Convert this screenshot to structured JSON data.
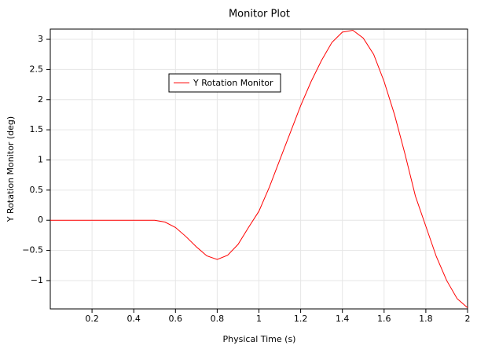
{
  "chart_data": {
    "type": "line",
    "title": "Monitor Plot",
    "x_label": "Physical Time (s)",
    "y_label": "Y Rotation Monitor (deg)",
    "x": [
      0,
      0.05,
      0.1,
      0.15,
      0.2,
      0.25,
      0.3,
      0.35,
      0.4,
      0.45,
      0.5,
      0.55,
      0.6,
      0.65,
      0.7,
      0.75,
      0.8,
      0.85,
      0.9,
      0.95,
      1,
      1.05,
      1.1,
      1.15,
      1.2,
      1.25,
      1.3,
      1.35,
      1.4,
      1.45,
      1.5,
      1.55,
      1.6,
      1.65,
      1.7,
      1.75,
      1.8,
      1.85,
      1.9,
      1.95,
      2
    ],
    "series": [
      {
        "name": "Y Rotation Monitor",
        "color": "#ff0000",
        "values": [
          0,
          0,
          0,
          0,
          0,
          0,
          0,
          0,
          0,
          0,
          0,
          -0.03,
          -0.12,
          -0.27,
          -0.44,
          -0.59,
          -0.65,
          -0.58,
          -0.4,
          -0.12,
          0.15,
          0.55,
          1.0,
          1.45,
          1.9,
          2.3,
          2.65,
          2.95,
          3.12,
          3.15,
          3.02,
          2.75,
          2.3,
          1.75,
          1.1,
          0.4,
          -0.1,
          -0.6,
          -1.0,
          -1.3,
          -1.45
        ]
      }
    ],
    "xlim": [
      0,
      2
    ],
    "ylim": [
      -1.47,
      3.17
    ],
    "xticks": [
      0.2,
      0.4,
      0.6,
      0.8,
      1,
      1.2,
      1.4,
      1.6,
      1.8,
      2
    ],
    "yticks": [
      {
        "value": -1,
        "label": "−1"
      },
      {
        "value": -0.5,
        "label": "−0.5"
      },
      0,
      0.5,
      1,
      1.5,
      2,
      2.5,
      3
    ],
    "grid": true
  }
}
